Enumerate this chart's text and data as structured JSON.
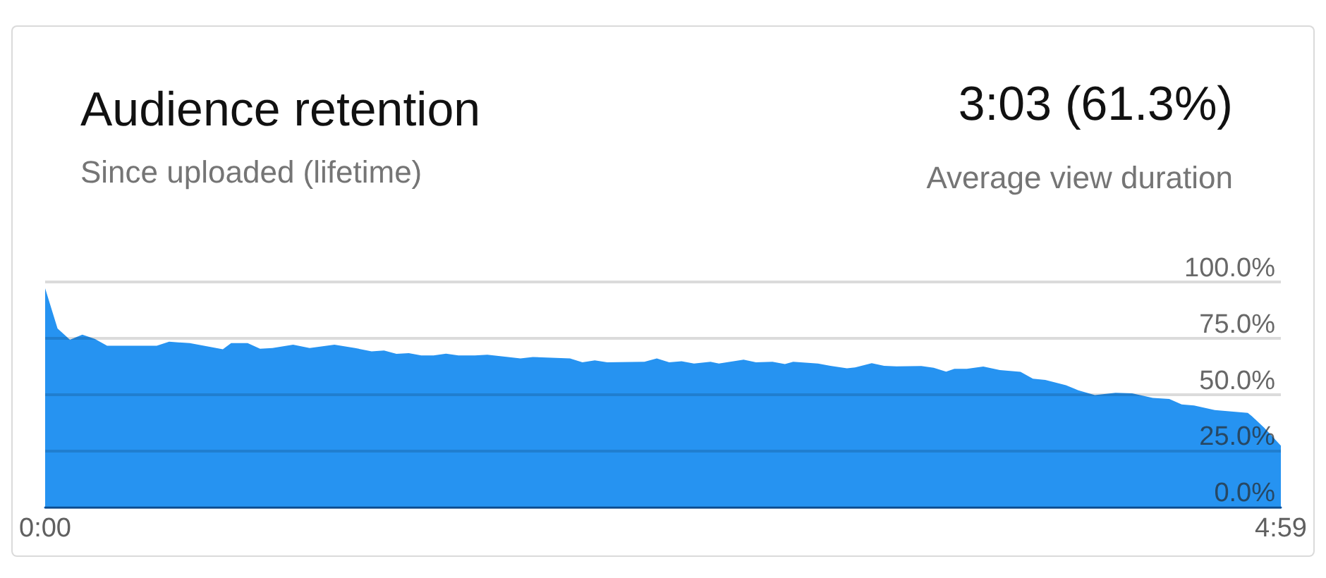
{
  "chart_data": {
    "type": "area",
    "title": "Audience retention",
    "subtitle": "Since uploaded (lifetime)",
    "annotations": [
      "3:03 (61.3%)",
      "Average view duration"
    ],
    "x": [
      0,
      3,
      6,
      9,
      12,
      15,
      27,
      30,
      35,
      43,
      45,
      49,
      52,
      55,
      60,
      64,
      70,
      75,
      79,
      82,
      85,
      88,
      91,
      94,
      97,
      100,
      104,
      107,
      112,
      115,
      118,
      127,
      130,
      133,
      136,
      145,
      148,
      151,
      154,
      157,
      161,
      163,
      169,
      172,
      176,
      179,
      181,
      187,
      190,
      194,
      196,
      200,
      203,
      206,
      212,
      215,
      218,
      220,
      223,
      227,
      231,
      236,
      239,
      242,
      247,
      250,
      254,
      259,
      263,
      268,
      272,
      275,
      278,
      283,
      287,
      291,
      292,
      295,
      299
    ],
    "series": [
      {
        "color": "#2693f1",
        "values": [
          97.2,
          79.3,
          74.3,
          76.6,
          74.7,
          71.6,
          71.6,
          73.4,
          72.8,
          70.1,
          72.8,
          72.8,
          70.3,
          70.6,
          72.1,
          70.6,
          72.1,
          70.6,
          69.1,
          69.5,
          68.0,
          68.3,
          67.3,
          67.3,
          68.1,
          67.3,
          67.3,
          67.6,
          66.6,
          66.0,
          66.6,
          66.0,
          64.3,
          65.1,
          64.3,
          64.5,
          66.0,
          64.3,
          64.7,
          63.7,
          64.5,
          63.7,
          65.4,
          64.3,
          64.5,
          63.5,
          64.5,
          63.7,
          62.7,
          61.6,
          62.0,
          63.9,
          62.7,
          62.5,
          62.6,
          61.8,
          60.1,
          61.4,
          61.4,
          62.4,
          60.8,
          60.0,
          57.0,
          56.4,
          54.1,
          51.8,
          49.7,
          50.7,
          50.5,
          48.4,
          48.0,
          45.5,
          45.1,
          43.0,
          42.4,
          41.8,
          40.3,
          35.1,
          27.2
        ]
      }
    ],
    "xlim": [
      0,
      299
    ],
    "xticks": [
      {
        "value": 0,
        "label": "0:00"
      },
      {
        "value": 299,
        "label": "4:59"
      }
    ],
    "ylim": [
      0,
      100
    ],
    "yticks": [
      {
        "value": 0,
        "label": "0.0%"
      },
      {
        "value": 25,
        "label": "25.0%"
      },
      {
        "value": 50,
        "label": "50.0%"
      },
      {
        "value": 75,
        "label": "75.0%"
      },
      {
        "value": 100,
        "label": "100.0%"
      }
    ],
    "grid": "y",
    "marker": "none"
  }
}
